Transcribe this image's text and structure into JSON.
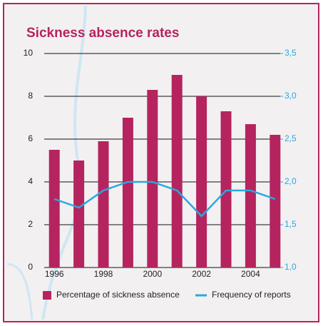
{
  "chart_data": {
    "type": "bar",
    "title": "Sickness absence rates",
    "categories": [
      "1996",
      null,
      "1998",
      null,
      "2000",
      null,
      "2002",
      null,
      "2004",
      null
    ],
    "series": [
      {
        "name": "Percentage of sickness absence",
        "color": "#b5245e",
        "type": "bar",
        "values": [
          5.5,
          5.0,
          5.9,
          7.0,
          8.3,
          9.0,
          8.0,
          7.3,
          6.7,
          6.2
        ]
      },
      {
        "name": "Frequency of reports",
        "color": "#29a8e0",
        "type": "line",
        "axis": "y2",
        "values": [
          1.8,
          1.7,
          1.9,
          2.0,
          2.0,
          1.9,
          1.6,
          1.9,
          1.9,
          1.8
        ]
      }
    ],
    "ylim": [
      0,
      10
    ],
    "yticks": [
      0,
      2,
      4,
      6,
      8,
      10
    ],
    "y2lim": [
      1.0,
      3.5
    ],
    "y2ticks": [
      {
        "value": 1.0,
        "label": "1,0"
      },
      {
        "value": 1.5,
        "label": "1,5"
      },
      {
        "value": 2.0,
        "label": "2,0"
      },
      {
        "value": 2.5,
        "label": "2,5"
      },
      {
        "value": 3.0,
        "label": "3,0"
      },
      {
        "value": 3.5,
        "label": "3,5"
      }
    ],
    "grid": true
  }
}
